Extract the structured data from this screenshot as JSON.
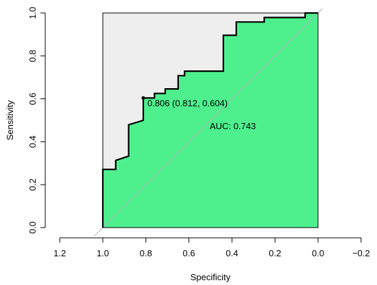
{
  "chart_data": {
    "type": "line",
    "xlabel": "Specificity",
    "ylabel": "Sensitivity",
    "x_reversed": true,
    "xlim": [
      1.2,
      -0.2
    ],
    "ylim": [
      0.0,
      1.0
    ],
    "grid": false,
    "x_ticks": [
      "1.2",
      "1.0",
      "0.8",
      "0.6",
      "0.4",
      "0.2",
      "0.0",
      "−0.2"
    ],
    "x_tick_values": [
      1.2,
      1.0,
      0.8,
      0.6,
      0.4,
      0.2,
      0.0,
      -0.2
    ],
    "y_ticks": [
      "0.0",
      "0.2",
      "0.4",
      "0.6",
      "0.8",
      "1.0"
    ],
    "y_tick_values": [
      0.0,
      0.2,
      0.4,
      0.6,
      0.8,
      1.0
    ],
    "roc_curve": {
      "specificity": [
        1.0,
        1.0,
        0.94,
        0.94,
        0.88,
        0.88,
        0.812,
        0.812,
        0.76,
        0.76,
        0.71,
        0.71,
        0.65,
        0.65,
        0.62,
        0.62,
        0.44,
        0.44,
        0.38,
        0.38,
        0.25,
        0.25,
        0.06,
        0.06,
        0.0
      ],
      "sensitivity": [
        0.0,
        0.271,
        0.271,
        0.313,
        0.333,
        0.479,
        0.5,
        0.604,
        0.604,
        0.625,
        0.625,
        0.646,
        0.646,
        0.708,
        0.708,
        0.729,
        0.729,
        0.896,
        0.896,
        0.958,
        0.958,
        0.979,
        0.979,
        1.0,
        1.0
      ],
      "fill_under": "#4ef08e",
      "fill_above": "#eeeeee",
      "line_color": "#000000"
    },
    "diagonal_color": "#b0b0b0",
    "threshold_point": {
      "specificity": 0.812,
      "sensitivity": 0.604,
      "label": "0.806 (0.812, 0.604)"
    },
    "auc_label": "AUC: 0.743"
  }
}
